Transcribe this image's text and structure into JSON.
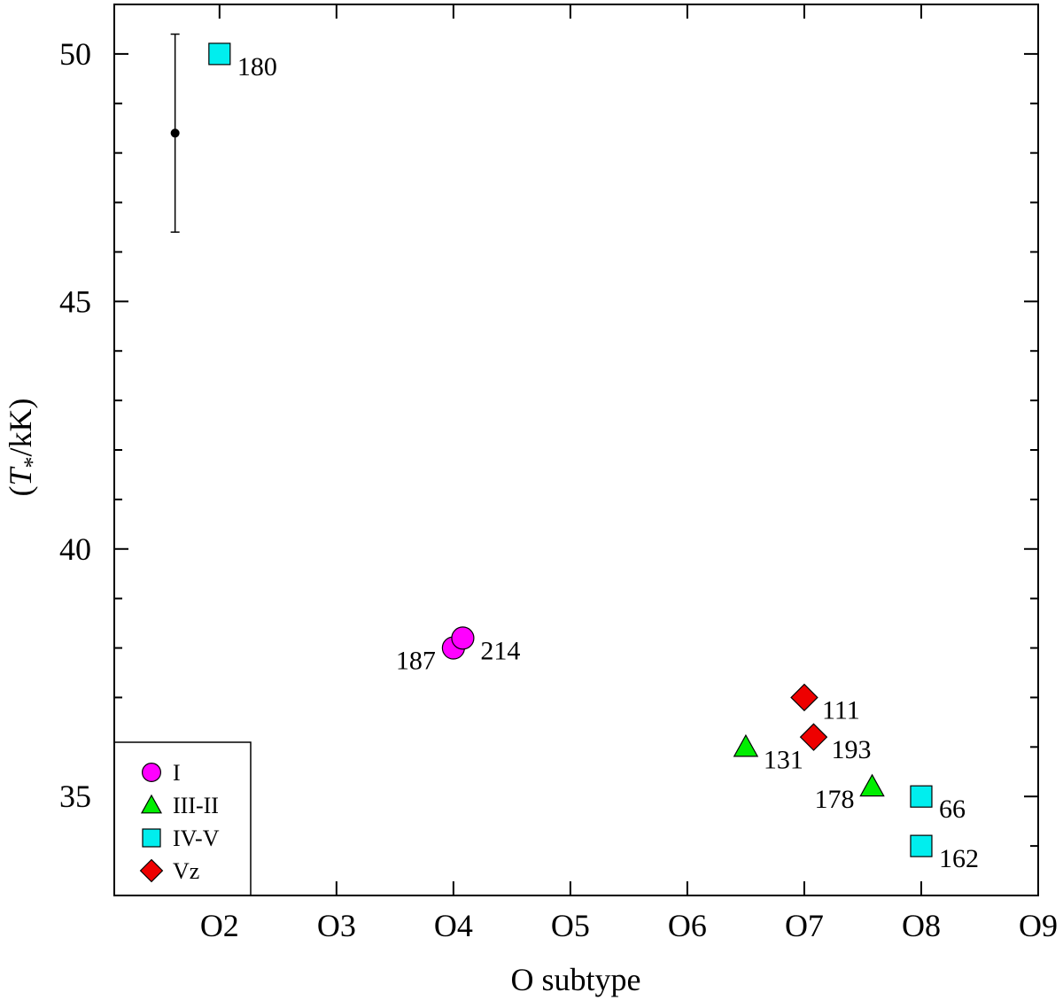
{
  "chart_data": {
    "type": "scatter",
    "xlabel": "O subtype",
    "ylabel_symbol": "T",
    "ylabel_subscript": "*",
    "ylabel_prefix": "(",
    "ylabel_suffix": "/kK)",
    "xlim": [
      1.1,
      9.0
    ],
    "ylim": [
      33.0,
      51.0
    ],
    "x_ticks": [
      {
        "value": 2,
        "label": "O2"
      },
      {
        "value": 3,
        "label": "O3"
      },
      {
        "value": 4,
        "label": "O4"
      },
      {
        "value": 5,
        "label": "O5"
      },
      {
        "value": 6,
        "label": "O6"
      },
      {
        "value": 7,
        "label": "O7"
      },
      {
        "value": 8,
        "label": "O8"
      },
      {
        "value": 9,
        "label": "O9"
      }
    ],
    "y_ticks_major": [
      {
        "value": 35,
        "label": "35"
      },
      {
        "value": 40,
        "label": "40"
      },
      {
        "value": 45,
        "label": "45"
      },
      {
        "value": 50,
        "label": "50"
      }
    ],
    "y_ticks_minor": [
      34,
      36,
      37,
      38,
      39,
      41,
      42,
      43,
      44,
      46,
      47,
      48,
      49
    ],
    "grid": false,
    "legend_position": "bottom-left",
    "series": [
      {
        "name": "I",
        "marker": "circle",
        "color": "#ff00ff",
        "points": [
          {
            "x": 4.0,
            "y": 38.0,
            "label": "187",
            "label_side": "left"
          },
          {
            "x": 4.08,
            "y": 38.2,
            "label": "214",
            "label_side": "right"
          }
        ]
      },
      {
        "name": "III-II",
        "marker": "triangle",
        "color": "#00ee00",
        "points": [
          {
            "x": 6.5,
            "y": 36.0,
            "label": "131",
            "label_side": "right"
          },
          {
            "x": 7.58,
            "y": 35.2,
            "label": "178",
            "label_side": "left"
          }
        ]
      },
      {
        "name": "IV-V",
        "marker": "square",
        "color": "#00eeee",
        "points": [
          {
            "x": 2.0,
            "y": 50.0,
            "label": "180",
            "label_side": "right"
          },
          {
            "x": 8.0,
            "y": 35.0,
            "label": "66",
            "label_side": "right"
          },
          {
            "x": 8.0,
            "y": 34.0,
            "label": "162",
            "label_side": "right"
          }
        ]
      },
      {
        "name": "Vz",
        "marker": "diamond",
        "color": "#ee0000",
        "points": [
          {
            "x": 7.0,
            "y": 37.0,
            "label": "111",
            "label_side": "right"
          },
          {
            "x": 7.08,
            "y": 36.2,
            "label": "193",
            "label_side": "right"
          }
        ]
      }
    ],
    "error_bar": {
      "x": 1.62,
      "y": 48.4,
      "y_low": 46.4,
      "y_high": 50.4
    }
  }
}
